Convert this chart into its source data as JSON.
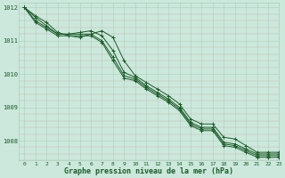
{
  "title": "Graphe pression niveau de la mer (hPa)",
  "background_color": "#cce8dc",
  "line_color": "#1a5c28",
  "grid_color": "#aacfbb",
  "xlim": [
    -0.5,
    23
  ],
  "ylim": [
    1007.4,
    1012.15
  ],
  "yticks": [
    1008,
    1009,
    1010,
    1011,
    1012
  ],
  "xticks": [
    0,
    1,
    2,
    3,
    4,
    5,
    6,
    7,
    8,
    9,
    10,
    11,
    12,
    13,
    14,
    15,
    16,
    17,
    18,
    19,
    20,
    21,
    22,
    23
  ],
  "series": [
    [
      1012.0,
      1011.75,
      1011.55,
      1011.25,
      1011.15,
      1011.1,
      1011.2,
      1011.3,
      1011.1,
      1010.4,
      1009.95,
      1009.75,
      1009.55,
      1009.35,
      1009.1,
      1008.65,
      1008.5,
      1008.5,
      1008.1,
      1008.05,
      1007.85,
      1007.65,
      1007.65,
      1007.65
    ],
    [
      1012.0,
      1011.7,
      1011.45,
      1011.2,
      1011.2,
      1011.25,
      1011.3,
      1011.15,
      1010.7,
      1010.05,
      1009.9,
      1009.65,
      1009.45,
      1009.25,
      1009.0,
      1008.55,
      1008.4,
      1008.4,
      1007.95,
      1007.9,
      1007.75,
      1007.6,
      1007.6,
      1007.6
    ],
    [
      1012.0,
      1011.6,
      1011.4,
      1011.2,
      1011.2,
      1011.2,
      1011.2,
      1011.0,
      1010.5,
      1009.95,
      1009.85,
      1009.6,
      1009.4,
      1009.2,
      1008.95,
      1008.5,
      1008.35,
      1008.35,
      1007.9,
      1007.85,
      1007.7,
      1007.55,
      1007.55,
      1007.55
    ],
    [
      1012.0,
      1011.55,
      1011.35,
      1011.15,
      1011.15,
      1011.15,
      1011.15,
      1010.95,
      1010.4,
      1009.88,
      1009.8,
      1009.55,
      1009.35,
      1009.15,
      1008.9,
      1008.45,
      1008.3,
      1008.3,
      1007.85,
      1007.8,
      1007.65,
      1007.5,
      1007.5,
      1007.5
    ]
  ],
  "figsize": [
    3.2,
    2.0
  ],
  "dpi": 100
}
